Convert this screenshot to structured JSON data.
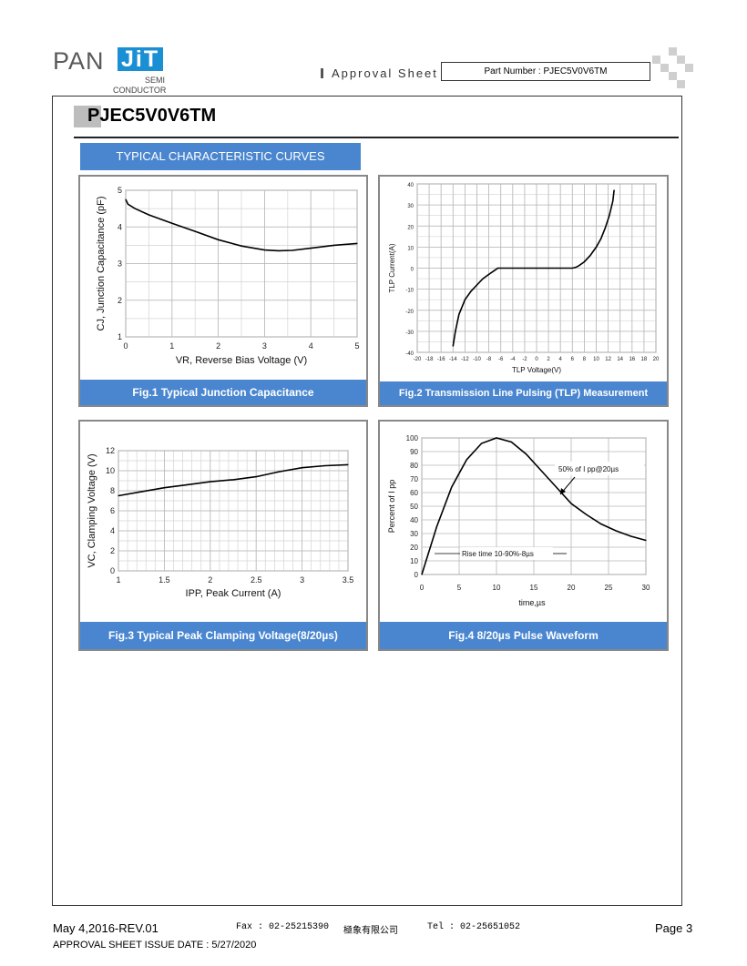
{
  "header": {
    "logo_pan": "PAN",
    "logo_jit": "JiT",
    "logo_semi": "SEMI",
    "logo_conductor": "CONDUCTOR",
    "approval": "Approval Sheet",
    "part_number": "Part Number : PJEC5V0V6TM"
  },
  "doc": {
    "title": "PJEC5V0V6TM",
    "section": "TYPICAL CHARACTERISTIC CURVES"
  },
  "fig1": {
    "caption": "Fig.1 Typical Junction Capacitance"
  },
  "fig2": {
    "caption": "Fig.2 Transmission Line Pulsing (TLP) Measurement"
  },
  "fig3": {
    "caption": "Fig.3 Typical Peak Clamping Voltage(8/20µs)"
  },
  "fig4": {
    "caption": "Fig.4 8/20µs Pulse Waveform"
  },
  "chart_data": [
    {
      "type": "line",
      "xlabel": "VR, Reverse Bias Voltage (V)",
      "ylabel": "CJ, Junction Capacitance (pF)",
      "xlim": [
        0,
        5
      ],
      "ylim": [
        1,
        5
      ],
      "xticks": [
        "0",
        "1",
        "2",
        "3",
        "4",
        "5"
      ],
      "yticks": [
        "1",
        "2",
        "3",
        "4",
        "5"
      ],
      "x": [
        0,
        0.05,
        0.2,
        0.5,
        1.0,
        1.5,
        2.0,
        2.5,
        3.0,
        3.3,
        3.6,
        4.0,
        4.5,
        5.0
      ],
      "y": [
        4.75,
        4.62,
        4.5,
        4.33,
        4.1,
        3.88,
        3.65,
        3.48,
        3.37,
        3.35,
        3.36,
        3.42,
        3.5,
        3.55
      ]
    },
    {
      "type": "line",
      "xlabel": "TLP Voltage(V)",
      "ylabel": "TLP Current(A)",
      "xlim": [
        -20,
        20
      ],
      "ylim": [
        -40,
        40
      ],
      "xticks": [
        "-20",
        "-18",
        "-16",
        "-14",
        "-12",
        "-10",
        "-8",
        "-6",
        "-4",
        "-2",
        "0",
        "2",
        "4",
        "6",
        "8",
        "10",
        "12",
        "14",
        "16",
        "18",
        "20"
      ],
      "yticks": [
        "-40",
        "-30",
        "-20",
        "-10",
        "0",
        "10",
        "20",
        "30",
        "40"
      ],
      "x": [
        -14,
        -13.6,
        -13,
        -12,
        -11,
        -10,
        -9,
        -8,
        -7,
        -6.5,
        -6,
        0,
        6,
        6.5,
        7,
        8,
        9,
        10,
        10.8,
        11.5,
        12.2,
        12.8,
        13
      ],
      "y": [
        -37,
        -30,
        -22,
        -15,
        -11,
        -8,
        -5,
        -3,
        -1,
        0,
        0,
        0,
        0,
        0.3,
        1,
        3,
        6,
        10,
        14,
        19,
        25,
        32,
        37
      ]
    },
    {
      "type": "line",
      "xlabel": "IPP, Peak Current (A)",
      "ylabel": "VC, Clamping Voltage (V)",
      "xlim": [
        1,
        3.5
      ],
      "ylim": [
        0,
        12
      ],
      "xticks": [
        "1",
        "1.5",
        "2",
        "2.5",
        "3",
        "3.5"
      ],
      "yticks": [
        "0",
        "2",
        "4",
        "6",
        "8",
        "10",
        "12"
      ],
      "x": [
        1,
        1.25,
        1.5,
        1.75,
        2,
        2.25,
        2.5,
        2.75,
        3,
        3.25,
        3.5
      ],
      "y": [
        7.5,
        7.9,
        8.3,
        8.6,
        8.9,
        9.1,
        9.4,
        9.9,
        10.3,
        10.5,
        10.6
      ]
    },
    {
      "type": "line",
      "xlabel": "time,µs",
      "ylabel": "Percent of I pp",
      "xlim": [
        0,
        30
      ],
      "ylim": [
        0,
        100
      ],
      "xticks": [
        "0",
        "5",
        "10",
        "15",
        "20",
        "25",
        "30"
      ],
      "yticks": [
        "0",
        "10",
        "20",
        "30",
        "40",
        "50",
        "60",
        "70",
        "80",
        "90",
        "100"
      ],
      "annotations": [
        "50% of I pp@20µs",
        "Rise time 10-90%-8µs"
      ],
      "x": [
        0,
        2,
        4,
        6,
        8,
        10,
        12,
        14,
        16,
        18,
        20,
        22,
        24,
        26,
        28,
        30
      ],
      "y": [
        0,
        35,
        64,
        84,
        96,
        100,
        97,
        88,
        76,
        64,
        52,
        44,
        37,
        32,
        28,
        25
      ]
    }
  ],
  "footer": {
    "rev": "May 4,2016-REV.01",
    "fax": "Fax : 02-25215390",
    "company": "極象有限公司",
    "tel": "Tel : 02-25651052",
    "page": "Page 3",
    "issue": "APPROVAL SHEET ISSUE DATE : 5/27/2020"
  }
}
